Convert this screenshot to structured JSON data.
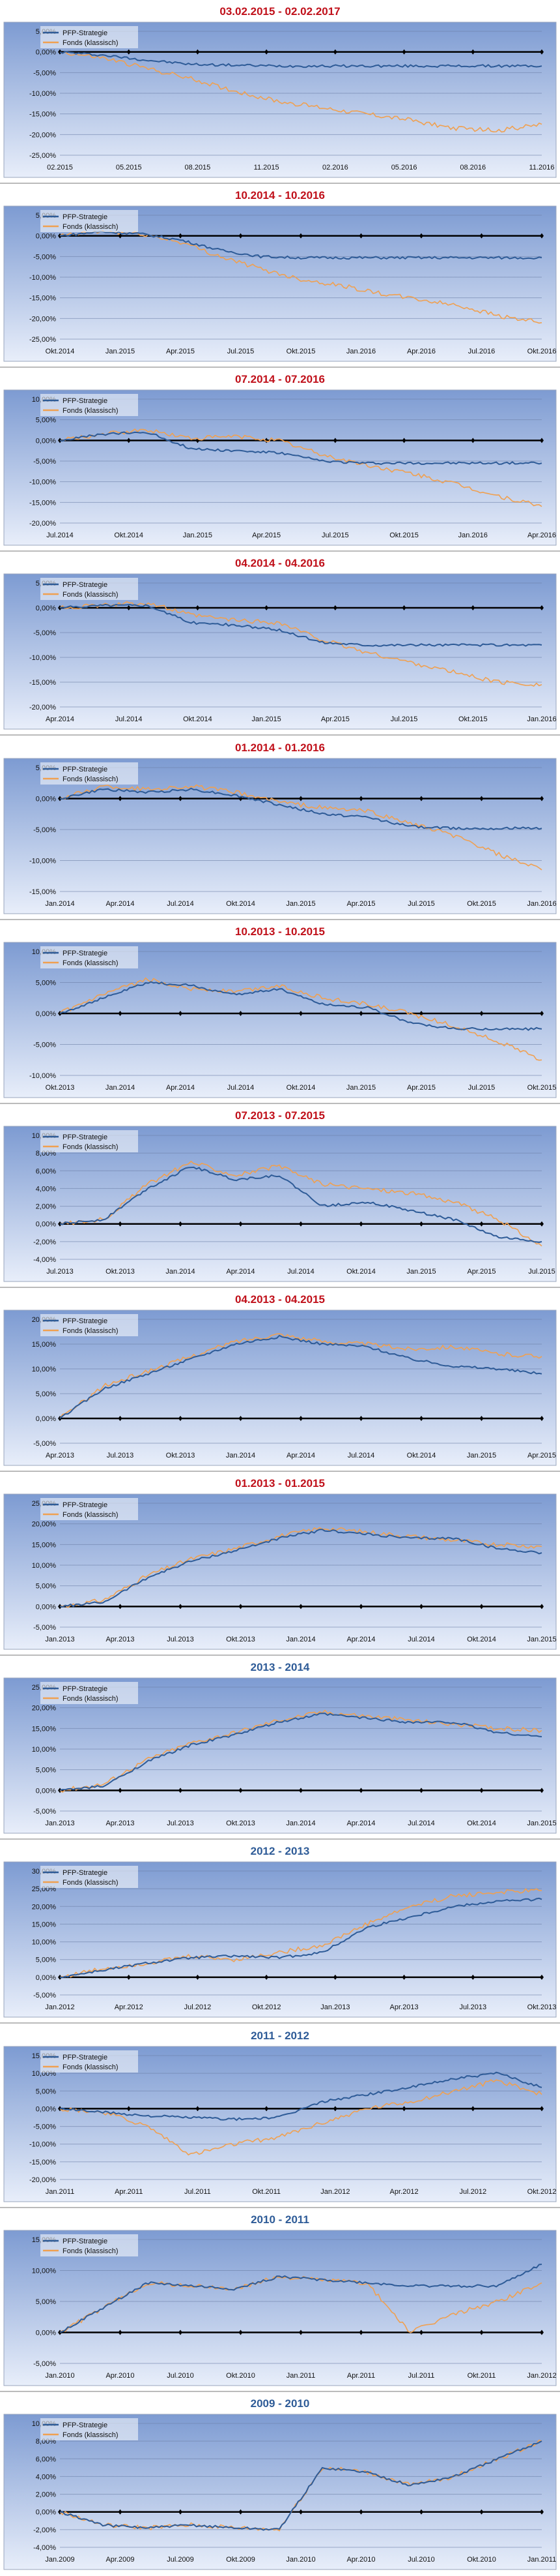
{
  "chart_data": [
    {
      "type": "line",
      "title": "03.02.2015 - 02.02.2017",
      "title_color": "#c0101a",
      "x_ticks": [
        "02.2015",
        "05.2015",
        "08.2015",
        "11.2015",
        "02.2016",
        "05.2016",
        "08.2016",
        "11.2016"
      ],
      "y_ticks": [
        "5,00%",
        "0,00%",
        "-5,00%",
        "-10,00%",
        "-15,00%",
        "-20,00%",
        "-25,00%"
      ],
      "ylim": [
        -25,
        5
      ],
      "series": [
        {
          "name": "PFP-Strategie",
          "color": "#2e5b97",
          "values": [
            0,
            -0.8,
            -2.0,
            -3.0,
            -3.2,
            -3.4,
            -3.4,
            -3.4,
            -3.4,
            -3.4,
            -3.4,
            -3.4
          ]
        },
        {
          "name": "Fonds (klassisch)",
          "color": "#f0a050",
          "values": [
            0,
            -1.5,
            -4.0,
            -6.5,
            -9.5,
            -12.0,
            -13.5,
            -15.0,
            -16.5,
            -18.5,
            -19.0,
            -17.5
          ]
        }
      ]
    },
    {
      "type": "line",
      "title": "10.2014 - 10.2016",
      "title_color": "#c0101a",
      "x_ticks": [
        "Okt.2014",
        "Jan.2015",
        "Apr.2015",
        "Jul.2015",
        "Okt.2015",
        "Jan.2016",
        "Apr.2016",
        "Jul.2016",
        "Okt.2016"
      ],
      "y_ticks": [
        "5,00%",
        "0,00%",
        "-5,00%",
        "-10,00%",
        "-15,00%",
        "-20,00%",
        "-25,00%"
      ],
      "ylim": [
        -25,
        5
      ],
      "series": [
        {
          "name": "PFP-Strategie",
          "color": "#2e5b97",
          "values": [
            0,
            1.0,
            0.5,
            -1.0,
            -3.5,
            -5.0,
            -5.3,
            -5.3,
            -5.3,
            -5.3,
            -5.3,
            -5.3,
            -5.3
          ]
        },
        {
          "name": "Fonds (klassisch)",
          "color": "#f0a050",
          "values": [
            0,
            1.0,
            0.5,
            -1.5,
            -5.0,
            -8.0,
            -10.5,
            -12.0,
            -14.0,
            -15.5,
            -17.0,
            -19.5,
            -21.0
          ]
        }
      ]
    },
    {
      "type": "line",
      "title": "07.2014 - 07.2016",
      "title_color": "#c0101a",
      "x_ticks": [
        "Jul.2014",
        "Okt.2014",
        "Jan.2015",
        "Apr.2015",
        "Jul.2015",
        "Okt.2015",
        "Jan.2016",
        "Apr.2016"
      ],
      "y_ticks": [
        "10,00%",
        "5,00%",
        "0,00%",
        "-5,00%",
        "-10,00%",
        "-15,00%",
        "-20,00%"
      ],
      "ylim": [
        -20,
        10
      ],
      "series": [
        {
          "name": "PFP-Strategie",
          "color": "#2e5b97",
          "values": [
            0,
            1.5,
            2.0,
            -2.0,
            -2.5,
            -3.0,
            -5.0,
            -5.5,
            -5.5,
            -5.5,
            -5.5,
            -5.5
          ]
        },
        {
          "name": "Fonds (klassisch)",
          "color": "#f0a050",
          "values": [
            0,
            1.5,
            2.5,
            0.5,
            1.0,
            0.0,
            -3.5,
            -6.0,
            -8.0,
            -10.5,
            -13.5,
            -16.0
          ]
        }
      ]
    },
    {
      "type": "line",
      "title": "04.2014 - 04.2016",
      "title_color": "#c0101a",
      "x_ticks": [
        "Apr.2014",
        "Jul.2014",
        "Okt.2014",
        "Jan.2015",
        "Apr.2015",
        "Jul.2015",
        "Okt.2015",
        "Jan.2016"
      ],
      "y_ticks": [
        "5,00%",
        "0,00%",
        "-5,00%",
        "-10,00%",
        "-15,00%",
        "-20,00%"
      ],
      "ylim": [
        -20,
        5
      ],
      "series": [
        {
          "name": "PFP-Strategie",
          "color": "#2e5b97",
          "values": [
            0,
            0.5,
            0.5,
            -3.0,
            -3.5,
            -4.5,
            -7.0,
            -7.5,
            -7.5,
            -7.5,
            -7.5,
            -7.5
          ]
        },
        {
          "name": "Fonds (klassisch)",
          "color": "#f0a050",
          "values": [
            0,
            0.5,
            1.0,
            -1.5,
            -2.5,
            -3.0,
            -6.5,
            -9.0,
            -11.0,
            -13.0,
            -15.0,
            -15.5
          ]
        }
      ]
    },
    {
      "type": "line",
      "title": "01.2014 - 01.2016",
      "title_color": "#c0101a",
      "x_ticks": [
        "Jan.2014",
        "Apr.2014",
        "Jul.2014",
        "Okt.2014",
        "Jan.2015",
        "Apr.2015",
        "Jul.2015",
        "Okt.2015",
        "Jan.2016"
      ],
      "y_ticks": [
        "5,00%",
        "0,00%",
        "-5,00%",
        "-10,00%",
        "-15,00%"
      ],
      "ylim": [
        -15,
        5
      ],
      "series": [
        {
          "name": "PFP-Strategie",
          "color": "#2e5b97",
          "values": [
            0,
            1.5,
            1.0,
            1.5,
            0.5,
            -1.0,
            -2.5,
            -3.0,
            -4.5,
            -4.8,
            -4.8,
            -4.8
          ]
        },
        {
          "name": "Fonds (klassisch)",
          "color": "#f0a050",
          "values": [
            0,
            2.0,
            1.5,
            2.0,
            1.0,
            -0.5,
            -1.5,
            -2.0,
            -4.0,
            -6.0,
            -9.0,
            -11.5
          ]
        }
      ]
    },
    {
      "type": "line",
      "title": "10.2013 - 10.2015",
      "title_color": "#c0101a",
      "x_ticks": [
        "Okt.2013",
        "Jan.2014",
        "Apr.2014",
        "Jul.2014",
        "Okt.2014",
        "Jan.2015",
        "Apr.2015",
        "Jul.2015",
        "Okt.2015"
      ],
      "y_ticks": [
        "10,00%",
        "5,00%",
        "0,00%",
        "-5,00%",
        "-10,00%"
      ],
      "ylim": [
        -10,
        10
      ],
      "series": [
        {
          "name": "PFP-Strategie",
          "color": "#2e5b97",
          "values": [
            0,
            2.5,
            5.0,
            4.5,
            3.0,
            4.0,
            1.5,
            1.0,
            -1.5,
            -2.5,
            -2.5,
            -2.5
          ]
        },
        {
          "name": "Fonds (klassisch)",
          "color": "#f0a050",
          "values": [
            0,
            3.0,
            5.5,
            4.0,
            3.5,
            4.5,
            2.5,
            1.5,
            0.0,
            -2.0,
            -4.5,
            -7.5
          ]
        }
      ]
    },
    {
      "type": "line",
      "title": "07.2013 - 07.2015",
      "title_color": "#c0101a",
      "x_ticks": [
        "Jul.2013",
        "Okt.2013",
        "Jan.2014",
        "Apr.2014",
        "Jul.2014",
        "Okt.2014",
        "Jan.2015",
        "Apr.2015",
        "Jul.2015"
      ],
      "y_ticks": [
        "10,00%",
        "8,00%",
        "6,00%",
        "4,00%",
        "2,00%",
        "0,00%",
        "-2,00%",
        "-4,00%"
      ],
      "ylim": [
        -4,
        10
      ],
      "series": [
        {
          "name": "PFP-Strategie",
          "color": "#2e5b97",
          "values": [
            0,
            0.5,
            4.0,
            6.5,
            5.0,
            5.5,
            2.0,
            2.5,
            1.5,
            0.5,
            -1.5,
            -2.0
          ]
        },
        {
          "name": "Fonds (klassisch)",
          "color": "#f0a050",
          "values": [
            0,
            0.5,
            4.5,
            7.0,
            5.5,
            6.5,
            4.5,
            4.0,
            3.5,
            2.5,
            0.5,
            -2.5
          ]
        }
      ]
    },
    {
      "type": "line",
      "title": "04.2013 - 04.2015",
      "title_color": "#c0101a",
      "x_ticks": [
        "Apr.2013",
        "Jul.2013",
        "Okt.2013",
        "Jan.2014",
        "Apr.2014",
        "Jul.2014",
        "Okt.2014",
        "Jan.2015",
        "Apr.2015"
      ],
      "y_ticks": [
        "20,00%",
        "15,00%",
        "10,00%",
        "5,00%",
        "0,00%",
        "-5,00%"
      ],
      "ylim": [
        -5,
        20
      ],
      "series": [
        {
          "name": "PFP-Strategie",
          "color": "#2e5b97",
          "values": [
            0,
            6.0,
            9.0,
            12.0,
            15.0,
            16.5,
            15.0,
            14.5,
            12.0,
            10.5,
            10.0,
            9.0
          ]
        },
        {
          "name": "Fonds (klassisch)",
          "color": "#f0a050",
          "values": [
            0,
            6.5,
            9.5,
            12.5,
            15.5,
            17.0,
            15.5,
            15.0,
            14.0,
            14.5,
            13.0,
            12.5
          ]
        }
      ]
    },
    {
      "type": "line",
      "title": "01.2013 - 01.2015",
      "title_color": "#c0101a",
      "x_ticks": [
        "Jan.2013",
        "Apr.2013",
        "Jul.2013",
        "Okt.2013",
        "Jan.2014",
        "Apr.2014",
        "Jul.2014",
        "Okt.2014",
        "Jan.2015"
      ],
      "y_ticks": [
        "25,00%",
        "20,00%",
        "15,00%",
        "10,00%",
        "5,00%",
        "0,00%",
        "-5,00%"
      ],
      "ylim": [
        -5,
        25
      ],
      "series": [
        {
          "name": "PFP-Strategie",
          "color": "#2e5b97",
          "values": [
            0,
            1.0,
            7.0,
            11.0,
            13.5,
            16.5,
            18.5,
            17.5,
            16.5,
            16.5,
            14.0,
            13.0
          ]
        },
        {
          "name": "Fonds (klassisch)",
          "color": "#f0a050",
          "values": [
            0,
            1.5,
            7.5,
            11.5,
            14.0,
            17.0,
            19.0,
            18.0,
            17.0,
            16.0,
            15.0,
            14.5
          ]
        }
      ]
    },
    {
      "type": "line",
      "title": "2013 - 2014",
      "title_color": "#2e5b97",
      "x_ticks": [
        "Jan.2013",
        "Apr.2013",
        "Jul.2013",
        "Okt.2013",
        "Jan.2014",
        "Apr.2014",
        "Jul.2014",
        "Okt.2014",
        "Jan.2015"
      ],
      "y_ticks": [
        "25,00%",
        "20,00%",
        "15,00%",
        "10,00%",
        "5,00%",
        "0,00%",
        "-5,00%"
      ],
      "ylim": [
        -5,
        25
      ],
      "series": [
        {
          "name": "PFP-Strategie",
          "color": "#2e5b97",
          "values": [
            0,
            1.0,
            7.0,
            11.0,
            13.5,
            16.5,
            18.5,
            17.5,
            16.5,
            16.5,
            14.0,
            13.0
          ]
        },
        {
          "name": "Fonds (klassisch)",
          "color": "#f0a050",
          "values": [
            0,
            1.5,
            7.5,
            11.5,
            14.0,
            17.0,
            19.0,
            18.0,
            17.0,
            16.0,
            15.0,
            14.5
          ]
        }
      ]
    },
    {
      "type": "line",
      "title": "2012 - 2013",
      "title_color": "#2e5b97",
      "x_ticks": [
        "Jan.2012",
        "Apr.2012",
        "Jul.2012",
        "Okt.2012",
        "Jan.2013",
        "Apr.2013",
        "Jul.2013",
        "Okt.2013"
      ],
      "y_ticks": [
        "30,00%",
        "25,00%",
        "20,00%",
        "15,00%",
        "10,00%",
        "5,00%",
        "0,00%",
        "-5,00%"
      ],
      "ylim": [
        -5,
        30
      ],
      "series": [
        {
          "name": "PFP-Strategie",
          "color": "#2e5b97",
          "values": [
            0,
            2.0,
            4.0,
            5.5,
            6.0,
            5.5,
            7.0,
            14.0,
            17.0,
            20.0,
            21.5,
            22.0
          ]
        },
        {
          "name": "Fonds (klassisch)",
          "color": "#f0a050",
          "values": [
            0,
            2.5,
            4.0,
            6.0,
            5.0,
            7.0,
            9.0,
            15.0,
            20.0,
            23.0,
            24.0,
            24.5
          ]
        }
      ]
    },
    {
      "type": "line",
      "title": "2011 - 2012",
      "title_color": "#2e5b97",
      "x_ticks": [
        "Jan.2011",
        "Apr.2011",
        "Jul.2011",
        "Okt.2011",
        "Jan.2012",
        "Apr.2012",
        "Jul.2012",
        "Okt.2012"
      ],
      "y_ticks": [
        "15,00%",
        "10,00%",
        "5,00%",
        "0,00%",
        "-5,00%",
        "-10,00%",
        "-15,00%",
        "-20,00%"
      ],
      "ylim": [
        -20,
        15
      ],
      "series": [
        {
          "name": "PFP-Strategie",
          "color": "#2e5b97",
          "values": [
            0,
            -1.0,
            -2.0,
            -2.5,
            -3.0,
            -2.5,
            2.0,
            4.0,
            6.0,
            8.5,
            10.0,
            6.0
          ]
        },
        {
          "name": "Fonds (klassisch)",
          "color": "#f0a050",
          "values": [
            0,
            -1.0,
            -5.0,
            -13.0,
            -10.0,
            -8.0,
            -4.0,
            0.0,
            2.0,
            5.0,
            8.0,
            4.0
          ]
        }
      ]
    },
    {
      "type": "line",
      "title": "2010 - 2011",
      "title_color": "#2e5b97",
      "x_ticks": [
        "Jan.2010",
        "Apr.2010",
        "Jul.2010",
        "Okt.2010",
        "Jan.2011",
        "Apr.2011",
        "Jul.2011",
        "Okt.2011",
        "Jan.2012"
      ],
      "y_ticks": [
        "15,00%",
        "10,00%",
        "5,00%",
        "0,00%",
        "-5,00%"
      ],
      "ylim": [
        -5,
        15
      ],
      "series": [
        {
          "name": "PFP-Strategie",
          "color": "#2e5b97",
          "values": [
            0,
            4.0,
            8.0,
            7.5,
            7.0,
            9.0,
            8.5,
            8.0,
            7.5,
            7.5,
            7.5,
            11.0
          ]
        },
        {
          "name": "Fonds (klassisch)",
          "color": "#f0a050",
          "values": [
            0,
            4.0,
            8.0,
            7.5,
            7.0,
            9.0,
            8.5,
            8.0,
            0.0,
            3.0,
            5.0,
            8.0
          ]
        }
      ]
    },
    {
      "type": "line",
      "title": "2009 - 2010",
      "title_color": "#2e5b97",
      "x_ticks": [
        "Jan.2009",
        "Apr.2009",
        "Jul.2009",
        "Okt.2009",
        "Jan.2010",
        "Apr.2010",
        "Jul.2010",
        "Okt.2010",
        "Jan.2011"
      ],
      "y_ticks": [
        "10,00%",
        "8,00%",
        "6,00%",
        "4,00%",
        "2,00%",
        "0,00%",
        "-2,00%",
        "-4,00%"
      ],
      "ylim": [
        -4,
        10
      ],
      "series": [
        {
          "name": "PFP-Strategie",
          "color": "#2e5b97",
          "values": [
            0,
            -1.5,
            -1.8,
            -1.5,
            -1.8,
            -2.0,
            5.0,
            4.5,
            3.0,
            4.0,
            6.0,
            8.0
          ]
        },
        {
          "name": "Fonds (klassisch)",
          "color": "#f0a050",
          "values": [
            0,
            -1.5,
            -1.8,
            -1.5,
            -1.8,
            -2.0,
            5.0,
            4.5,
            3.0,
            4.0,
            6.0,
            8.0
          ]
        }
      ]
    }
  ]
}
